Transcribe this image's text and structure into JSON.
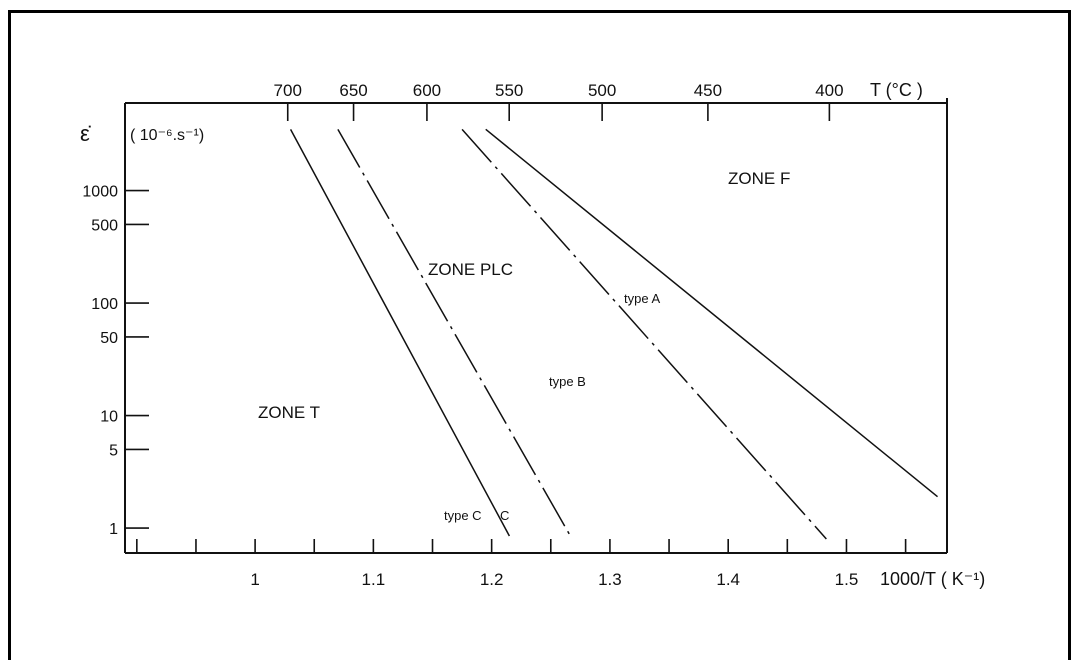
{
  "chart_data": {
    "type": "line",
    "x_axis": {
      "label": "1000/T ( K⁻¹)",
      "ticks": [
        1,
        1.1,
        1.2,
        1.3,
        1.4,
        1.5
      ],
      "tick_labels": [
        "1",
        "1.1",
        "1.2",
        "1.3",
        "1.4",
        "1.5"
      ],
      "range": [
        0.89,
        1.585
      ]
    },
    "top_axis": {
      "label": "T (°C )",
      "ticks": [
        700,
        650,
        600,
        550,
        500,
        450,
        400
      ],
      "tick_labels": [
        "700",
        "650",
        "600",
        "550",
        "500",
        "450",
        "400"
      ]
    },
    "y_axis": {
      "symbol": "ε̇",
      "unit": "( 10⁻⁶.s⁻¹)",
      "scale": "log",
      "ticks": [
        1,
        5,
        10,
        50,
        100,
        500,
        1000
      ],
      "tick_labels": [
        "1",
        "5",
        "10",
        "50",
        "100",
        "500",
        "1000"
      ],
      "range": [
        0.6,
        6000
      ]
    },
    "series": [
      {
        "style": "solid",
        "x": [
          1.03,
          1.215
        ],
        "y": [
          3500,
          0.85
        ]
      },
      {
        "style": "dash-dot",
        "x": [
          1.07,
          1.268
        ],
        "y": [
          3500,
          0.8
        ]
      },
      {
        "style": "dash-dot",
        "x": [
          1.175,
          1.483
        ],
        "y": [
          3500,
          0.8
        ]
      },
      {
        "style": "solid",
        "x": [
          1.195,
          1.577
        ],
        "y": [
          3500,
          1.9
        ]
      }
    ],
    "annotations": [
      "ZONE F",
      "ZONE PLC",
      "ZONE T",
      "type A",
      "type B",
      "type C"
    ]
  }
}
